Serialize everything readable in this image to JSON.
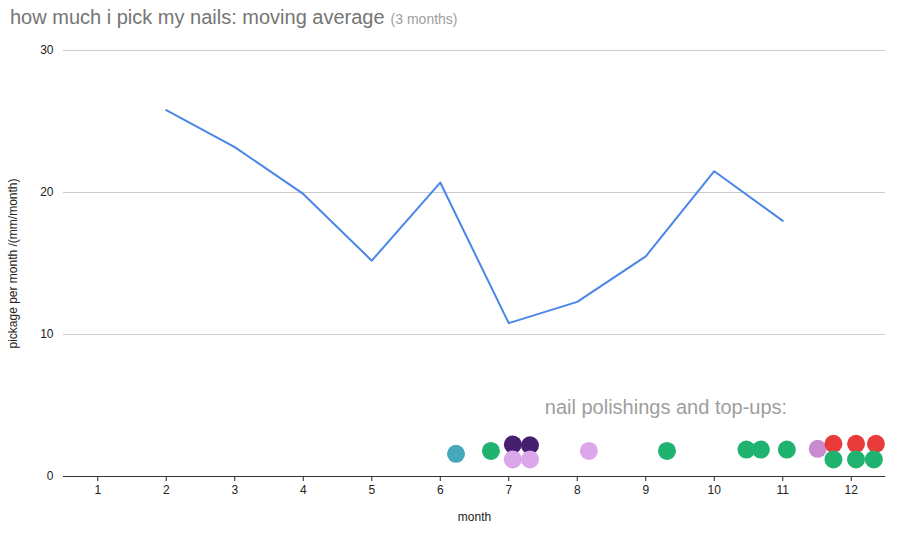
{
  "chart_data": {
    "type": "line",
    "title": "how much i pick my nails: moving average",
    "subtitle": "(3 months)",
    "x_label": "month",
    "y_label": "pickage per month /(mm/month)",
    "xlim": [
      0.5,
      12.5
    ],
    "xticks": [
      1,
      2,
      3,
      4,
      5,
      6,
      7,
      8,
      9,
      10,
      11,
      12
    ],
    "ylim": [
      0,
      30
    ],
    "yticks": [
      0,
      10,
      20,
      30
    ],
    "grid": true,
    "annotations": [
      {
        "text": "nail polishings and top-ups:"
      }
    ],
    "series": [
      {
        "type": "line",
        "color": "#4a86e8",
        "x": [
          2,
          3,
          4,
          5,
          6,
          7,
          8,
          9,
          10,
          11
        ],
        "values": [
          25.8,
          23.2,
          19.9,
          15.2,
          20.7,
          10.8,
          12.3,
          15.5,
          21.5,
          18.0
        ]
      },
      {
        "type": "scatter",
        "marker": "circle",
        "x": [
          6.23,
          6.74,
          7.06,
          7.31,
          7.06,
          7.31,
          8.17,
          9.31,
          10.47,
          10.68,
          11.06,
          11.51,
          11.74,
          12.07,
          12.36,
          11.74,
          12.07,
          12.33
        ],
        "values": [
          1.6,
          1.8,
          2.25,
          2.2,
          1.2,
          1.2,
          1.8,
          1.8,
          1.9,
          1.9,
          1.9,
          1.95,
          2.3,
          2.3,
          2.3,
          1.2,
          1.2,
          1.2
        ],
        "colors": [
          "#45a7bc",
          "#1fb36f",
          "#46206e",
          "#46206e",
          "#dca6ea",
          "#dca6ea",
          "#dca6ea",
          "#1fb36f",
          "#1fb36f",
          "#1fb36f",
          "#1fb36f",
          "#c98ad0",
          "#ea3b3b",
          "#ea3b3b",
          "#ea3b3b",
          "#1fb36f",
          "#1fb36f",
          "#1fb36f"
        ]
      }
    ]
  }
}
